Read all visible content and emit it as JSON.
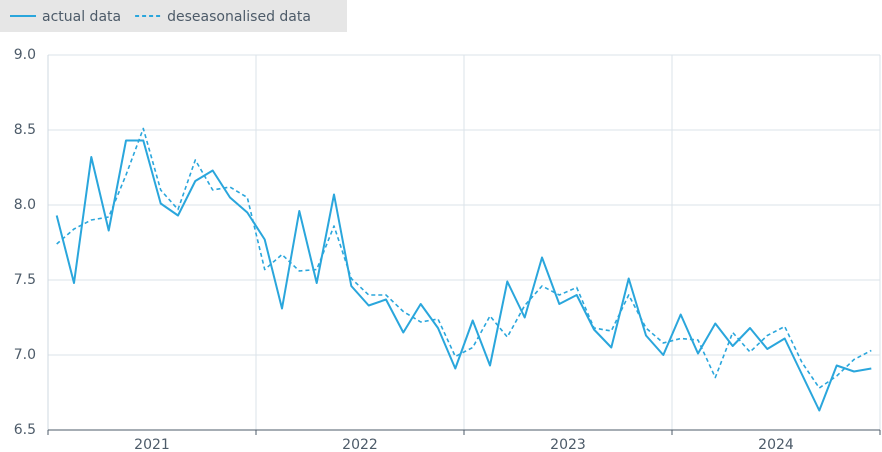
{
  "chart_data": {
    "type": "line",
    "categories": [
      null,
      null,
      null,
      null,
      null,
      null,
      null,
      null,
      null,
      null,
      null,
      null,
      null,
      null,
      null,
      null,
      null,
      null,
      null,
      null,
      null,
      null,
      null,
      null,
      null,
      null,
      null,
      null,
      null,
      null,
      null,
      null,
      null,
      null,
      null,
      null,
      null,
      null,
      null,
      null,
      null,
      null,
      null,
      null,
      null,
      null,
      null,
      null
    ],
    "x_groups": [
      {
        "label": "2021",
        "span": 12
      },
      {
        "label": "2022",
        "span": 12
      },
      {
        "label": "2023",
        "span": 12
      },
      {
        "label": "2024",
        "span": 12
      }
    ],
    "series": [
      {
        "name": "actual data",
        "color": "#2aa6dc",
        "dash": false,
        "values": [
          7.93,
          7.48,
          8.32,
          7.83,
          8.43,
          8.43,
          8.01,
          7.93,
          8.16,
          8.23,
          8.05,
          7.95,
          7.77,
          7.31,
          7.96,
          7.48,
          8.07,
          7.46,
          7.33,
          7.37,
          7.15,
          7.34,
          7.18,
          6.91,
          7.23,
          6.93,
          7.49,
          7.25,
          7.65,
          7.34,
          7.4,
          7.17,
          7.05,
          7.51,
          7.13,
          7.0,
          7.27,
          7.01,
          7.21,
          7.06,
          7.18,
          7.04,
          7.11,
          6.87,
          6.63,
          6.93,
          6.89,
          6.91
        ]
      },
      {
        "name": "deseasonalised data",
        "color": "#2aa6dc",
        "dash": true,
        "values": [
          7.74,
          7.84,
          7.9,
          7.92,
          8.2,
          8.51,
          8.1,
          7.97,
          8.3,
          8.1,
          8.12,
          8.05,
          7.57,
          7.67,
          7.56,
          7.57,
          7.86,
          7.51,
          7.4,
          7.4,
          7.29,
          7.22,
          7.24,
          6.99,
          7.05,
          7.26,
          7.12,
          7.33,
          7.46,
          7.4,
          7.45,
          7.18,
          7.16,
          7.4,
          7.18,
          7.08,
          7.11,
          7.1,
          6.85,
          7.15,
          7.02,
          7.13,
          7.19,
          6.95,
          6.78,
          6.86,
          6.97,
          7.03
        ]
      }
    ],
    "ylim": [
      6.5,
      9.0
    ],
    "yticks": [
      6.5,
      {
        "value": 7,
        "label": "7.0"
      },
      7.5,
      {
        "value": 8,
        "label": "8.0"
      },
      8.5,
      {
        "value": 9,
        "label": "9.0"
      }
    ],
    "grid": true
  }
}
